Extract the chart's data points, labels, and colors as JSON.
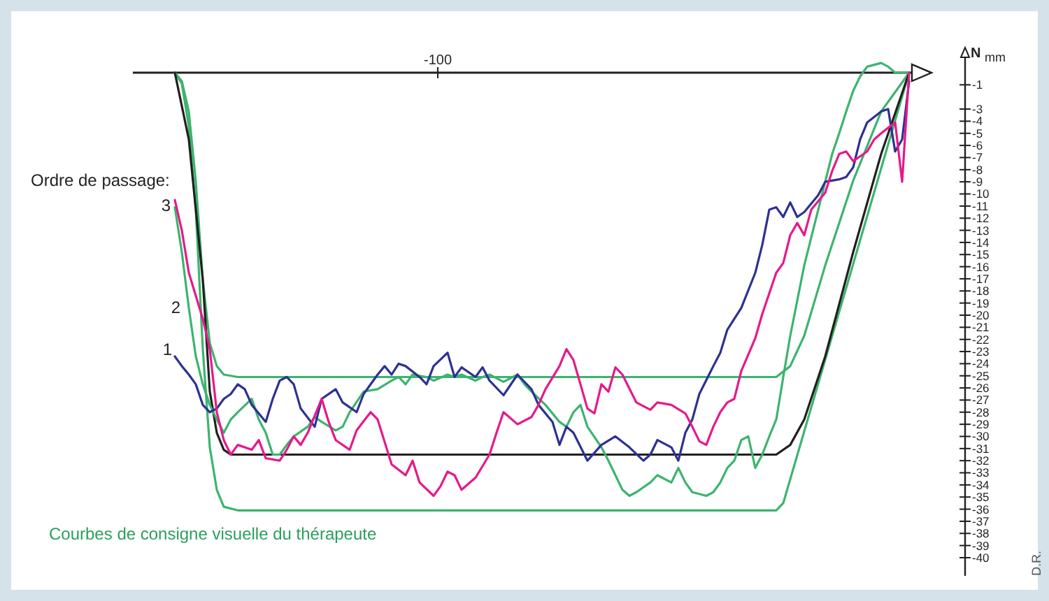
{
  "chart_data": {
    "type": "line",
    "xlabel": "mm",
    "ylabel": "N",
    "ylim": [
      -41.5,
      1.5
    ],
    "yticks": [
      -1,
      -3,
      -4,
      -5,
      -6,
      -7,
      -8,
      -9,
      -10,
      -11,
      -12,
      -13,
      -14,
      -15,
      -16,
      -17,
      -18,
      -19,
      -20,
      -21,
      -22,
      -23,
      -24,
      -25,
      -26,
      -27,
      -28,
      -29,
      -30,
      -31,
      -32,
      -33,
      -34,
      -35,
      -36,
      -37,
      -38,
      -39,
      -40
    ],
    "grid": false,
    "annotations": [
      "Ordre de passage:",
      "Courbes de consigne visuelle du thérapeute",
      "D.R.",
      "-100",
      "3",
      "2",
      "1"
    ],
    "categories": [
      null,
      null,
      null,
      null,
      null,
      null,
      null,
      null,
      null,
      null,
      null,
      null,
      null,
      null,
      null,
      null,
      null,
      null,
      null,
      null,
      null,
      null,
      null,
      null,
      null,
      null,
      null,
      null,
      null,
      null,
      null,
      null,
      null,
      null,
      null,
      null,
      null,
      null,
      null,
      null,
      null,
      null,
      null,
      null,
      null,
      null,
      null,
      null,
      null,
      null,
      null,
      null,
      null,
      null,
      null,
      null,
      null,
      null,
      null,
      null,
      null,
      null,
      null,
      null,
      null,
      null,
      null,
      null,
      null,
      null,
      null,
      null,
      null,
      null,
      null,
      null,
      null,
      null,
      null,
      null,
      null,
      null,
      null,
      null,
      null,
      null,
      null,
      null,
      null,
      null,
      null,
      null,
      null,
      null,
      null,
      null,
      null,
      null,
      null,
      null,
      null,
      null,
      null,
      null,
      null,
      null
    ],
    "series": [
      {
        "color": "#3cb46e",
        "values": [
          0,
          -0.9,
          -4.4,
          -11.3,
          -22.8,
          -30.9,
          -34.4,
          -35.8,
          null,
          -36.1,
          null,
          null,
          null,
          null,
          null,
          null,
          null,
          null,
          null,
          null,
          null,
          null,
          null,
          null,
          null,
          null,
          null,
          null,
          null,
          null,
          null,
          null,
          null,
          null,
          null,
          null,
          null,
          null,
          null,
          null,
          null,
          null,
          null,
          null,
          null,
          null,
          null,
          null,
          null,
          null,
          null,
          null,
          null,
          null,
          null,
          null,
          null,
          null,
          null,
          null,
          null,
          null,
          null,
          null,
          null,
          null,
          null,
          null,
          null,
          null,
          null,
          null,
          null,
          null,
          null,
          null,
          null,
          null,
          null,
          null,
          null,
          null,
          null,
          null,
          null,
          null,
          -36.1,
          -35.5,
          null,
          null,
          null,
          null,
          null,
          null,
          null,
          null,
          null,
          null,
          null,
          null,
          null,
          null,
          null,
          null,
          null,
          0
        ]
      },
      {
        "color": "#3cb46e",
        "values": [
          0,
          -0.7,
          -3.2,
          -9.0,
          -17.1,
          -22.3,
          -24.2,
          -24.9,
          null,
          -25.1,
          null,
          null,
          null,
          null,
          null,
          null,
          null,
          null,
          null,
          null,
          null,
          null,
          null,
          null,
          null,
          null,
          null,
          null,
          null,
          null,
          null,
          null,
          null,
          null,
          null,
          null,
          null,
          null,
          null,
          null,
          null,
          null,
          null,
          null,
          null,
          null,
          null,
          null,
          null,
          null,
          null,
          null,
          null,
          null,
          null,
          null,
          null,
          null,
          null,
          null,
          null,
          null,
          null,
          null,
          null,
          null,
          null,
          null,
          null,
          null,
          null,
          null,
          null,
          null,
          null,
          null,
          null,
          null,
          null,
          null,
          null,
          null,
          null,
          null,
          null,
          null,
          -25.1,
          null,
          -24.2,
          null,
          -21.7,
          null,
          null,
          -15.9,
          null,
          null,
          null,
          -8.9,
          null,
          null,
          null,
          -3.2,
          null,
          null,
          null,
          0
        ]
      },
      {
        "color": "#231f20",
        "values": [
          0,
          null,
          -5.5,
          null,
          -17.1,
          -26.3,
          -29.7,
          -31.1,
          -31.5,
          null,
          null,
          null,
          null,
          null,
          null,
          null,
          null,
          null,
          null,
          null,
          null,
          null,
          null,
          null,
          null,
          null,
          null,
          null,
          null,
          null,
          null,
          null,
          null,
          null,
          null,
          null,
          null,
          null,
          null,
          null,
          null,
          null,
          null,
          null,
          null,
          null,
          null,
          null,
          null,
          null,
          null,
          null,
          null,
          null,
          null,
          null,
          null,
          null,
          null,
          null,
          null,
          null,
          null,
          null,
          null,
          null,
          null,
          null,
          null,
          null,
          null,
          null,
          null,
          null,
          null,
          null,
          null,
          null,
          null,
          null,
          null,
          null,
          null,
          null,
          null,
          null,
          -31.5,
          null,
          -30.7,
          null,
          -28.6,
          null,
          null,
          -23.4,
          null,
          null,
          null,
          -14.8,
          null,
          null,
          null,
          -6.7,
          null,
          null,
          null,
          0
        ]
      },
      {
        "color": "#3cb46e",
        "values": [
          -11.1,
          -14.8,
          -19.4,
          -23.4,
          -25.7,
          -27.4,
          -28.6,
          -29.7,
          -28.6,
          -28.0,
          null,
          -26.9,
          -28.6,
          -29.7,
          -31.5,
          -31.5,
          -30.7,
          -30.0,
          null,
          -29.2,
          -28.4,
          -28.8,
          null,
          -29.5,
          -29.2,
          -28.0,
          null,
          -26.3,
          null,
          -26.1,
          null,
          -25.4,
          -25.1,
          -25.7,
          -24.9,
          null,
          -25.1,
          -25.4,
          null,
          -24.9,
          -25.1,
          -24.9,
          null,
          -25.4,
          -25.1,
          -24.9,
          null,
          -25.5,
          null,
          -24.9,
          -25.7,
          -26.3,
          null,
          -27.4,
          null,
          -28.8,
          -29.2,
          -28.0,
          -27.4,
          -29.2,
          null,
          -30.9,
          -32.0,
          -33.2,
          -34.4,
          -34.9,
          -34.6,
          null,
          -33.8,
          -33.2,
          null,
          -33.8,
          -32.6,
          -33.8,
          -34.6,
          null,
          -34.9,
          -34.6,
          -33.8,
          -32.6,
          -32.0,
          -30.3,
          -30.0,
          -32.6,
          -31.5,
          -30.0,
          -28.6,
          -25.1,
          -21.7,
          -18.8,
          -15.9,
          -13.6,
          -11.3,
          -9.0,
          -6.7,
          -5.0,
          -3.2,
          -1.5,
          -0.3,
          0.5,
          null,
          0.8,
          0.5,
          0,
          null,
          0
        ]
      },
      {
        "color": "#2e3192",
        "values": [
          -23.4,
          -24.2,
          -24.9,
          -25.7,
          -27.4,
          -28.0,
          -27.7,
          -26.9,
          -26.5,
          -25.7,
          -26.1,
          -27.4,
          null,
          -28.8,
          -26.9,
          -25.4,
          -25.1,
          -25.7,
          -27.7,
          null,
          -29.2,
          -26.9,
          null,
          -26.1,
          -27.2,
          null,
          -28.0,
          -26.5,
          null,
          -24.9,
          -24.2,
          -24.9,
          -24.0,
          -24.2,
          null,
          -25.1,
          -25.7,
          -24.2,
          null,
          -23.1,
          -25.1,
          -24.3,
          null,
          -25.1,
          -24.3,
          -25.4,
          null,
          -26.6,
          null,
          -24.9,
          null,
          -26.1,
          -27.4,
          null,
          -28.8,
          -30.7,
          -29.2,
          -29.7,
          null,
          -32.0,
          null,
          -30.7,
          null,
          -30.0,
          null,
          -30.9,
          null,
          -32.0,
          -31.5,
          -30.3,
          null,
          -30.9,
          -32.0,
          -29.7,
          -28.6,
          -26.5,
          null,
          -24.2,
          -23.1,
          -21.2,
          null,
          -19.4,
          null,
          -16.5,
          -14.2,
          -11.3,
          -11.1,
          -11.9,
          -10.7,
          -11.9,
          -11.5,
          null,
          -10.1,
          -9.0,
          null,
          -8.8,
          -8.6,
          -7.8,
          -5.5,
          -4.1,
          null,
          -3.2,
          -3.0,
          -6.5,
          -5.5,
          -0.7
        ]
      },
      {
        "color": "#e6198a",
        "values": [
          -10.5,
          -13.0,
          -16.5,
          -18.4,
          -20.3,
          -22.8,
          -28.0,
          -30.3,
          -31.5,
          -30.7,
          null,
          -31.1,
          -30.3,
          -31.8,
          null,
          -32.0,
          -31.1,
          -30.0,
          -30.7,
          -29.7,
          null,
          -26.9,
          -28.8,
          -30.3,
          null,
          -31.1,
          -29.5,
          null,
          -28.0,
          -28.6,
          null,
          -32.3,
          null,
          -33.2,
          -32.0,
          -33.8,
          null,
          -34.9,
          -34.1,
          -32.9,
          -33.2,
          -34.4,
          null,
          -33.4,
          null,
          -31.5,
          -29.7,
          -28.0,
          null,
          -29.0,
          null,
          -28.4,
          -27.4,
          -26.1,
          null,
          -24.2,
          -22.8,
          -23.7,
          -25.7,
          -27.7,
          -28.1,
          -25.7,
          -26.3,
          -24.3,
          -24.9,
          null,
          -27.2,
          null,
          -27.8,
          -27.2,
          null,
          -27.4,
          null,
          -28.1,
          -29.2,
          -30.4,
          -30.7,
          -29.2,
          -28.0,
          -27.2,
          -26.9,
          -24.6,
          null,
          -21.9,
          -19.9,
          -18.2,
          -16.5,
          -15.7,
          -13.4,
          -12.4,
          -13.4,
          -11.3,
          null,
          -9.9,
          -8.1,
          -6.7,
          -6.5,
          -7.3,
          null,
          -6.5,
          -5.5,
          -5.0,
          null,
          -4.1,
          -9.0,
          0
        ]
      }
    ]
  }
}
